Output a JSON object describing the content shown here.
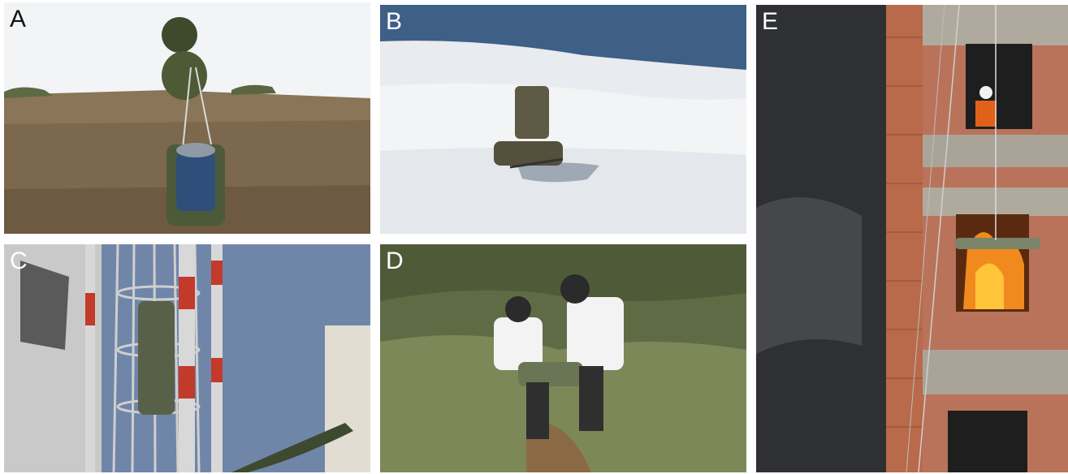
{
  "panels": [
    {
      "label": "A"
    },
    {
      "label": "B"
    },
    {
      "label": "C"
    },
    {
      "label": "D"
    },
    {
      "label": "E"
    }
  ],
  "colors": {
    "background": "#ffffff",
    "label_dark": "#111111",
    "label_light": "#ffffff"
  }
}
